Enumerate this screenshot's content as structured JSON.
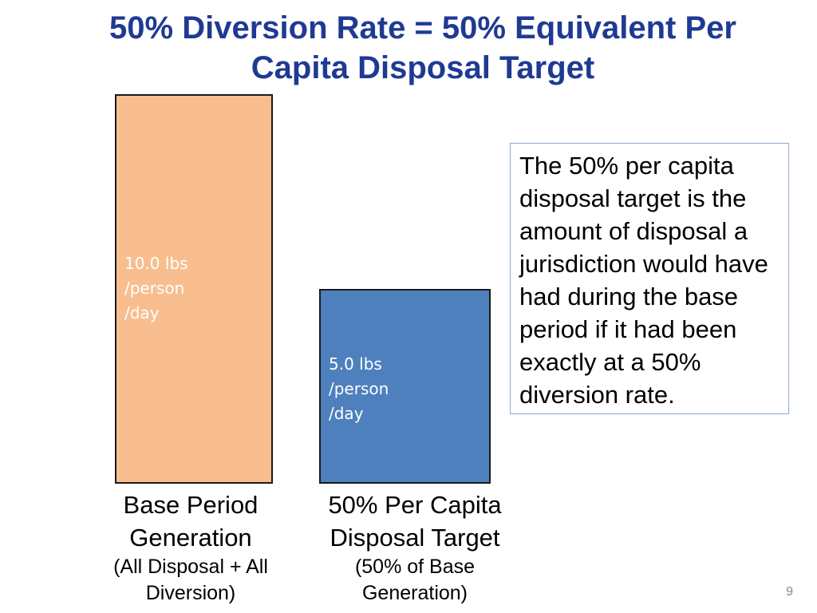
{
  "slide": {
    "title_line1": "50% Diversion Rate =  50% Equivalent Per",
    "title_line2": "Capita Disposal Target",
    "page_number": "9"
  },
  "note": {
    "text": "The 50% per capita disposal target is the amount of disposal a jurisdiction would have had during the base period if it had been exactly at a 50% diversion rate."
  },
  "chart_data": {
    "type": "bar",
    "categories": [
      "Base Period Generation (All Disposal + All Diversion)",
      "50% Per Capita Disposal Target (50% of Base Generation)"
    ],
    "values": [
      10.0,
      5.0
    ],
    "unit": "lbs /person /day",
    "colors": [
      "#f8be8f",
      "#4e80bd"
    ],
    "bar_labels": [
      [
        "10.0 lbs",
        "/person",
        "/day"
      ],
      [
        "5.0 lbs",
        "/person",
        "/day"
      ]
    ],
    "category_labels": [
      {
        "main": [
          "Base Period",
          "Generation"
        ],
        "sub": [
          "(All Disposal + All",
          "Diversion)"
        ]
      },
      {
        "main": [
          "50% Per Capita",
          "Disposal Target"
        ],
        "sub": [
          "(50% of Base",
          "Generation)"
        ]
      }
    ],
    "ylim": [
      0,
      10.0
    ],
    "grid": false,
    "axes_visible": false,
    "legend": "none",
    "title": "",
    "xlabel": "",
    "ylabel": ""
  }
}
